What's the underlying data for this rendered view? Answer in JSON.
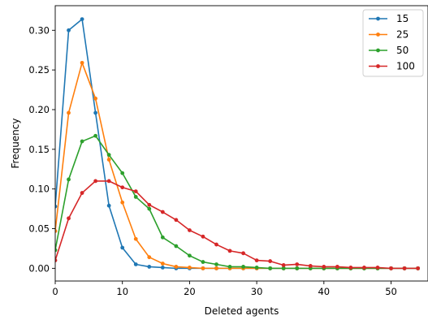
{
  "chart_data": {
    "type": "line",
    "title": "",
    "xlabel": "Deleted agents",
    "ylabel": "Frequency",
    "xlim": [
      0,
      55.5
    ],
    "ylim": [
      -0.016,
      0.331
    ],
    "xticks": [
      0,
      10,
      20,
      30,
      40,
      50
    ],
    "yticks": [
      0.0,
      0.05,
      0.1,
      0.15,
      0.2,
      0.25,
      0.3
    ],
    "ytick_labels": [
      "0.00",
      "0.05",
      "0.10",
      "0.15",
      "0.20",
      "0.25",
      "0.30"
    ],
    "grid": false,
    "legend_position": "top-right",
    "series": [
      {
        "name": "15",
        "color": "#1f77b4",
        "x": [
          0,
          2,
          4,
          6,
          8,
          10,
          12,
          14,
          16,
          18,
          20,
          22,
          24,
          26,
          28,
          30,
          32,
          34,
          36,
          38,
          40,
          42,
          44,
          46,
          48,
          50,
          52,
          54
        ],
        "y": [
          0.078,
          0.3,
          0.314,
          0.196,
          0.079,
          0.026,
          0.005,
          0.002,
          0.001,
          0.0,
          0.0,
          0.0,
          0.0,
          0.0,
          0.0,
          0.0,
          0.0,
          0.0,
          0.0,
          0.0,
          0.0,
          0.0,
          0.0,
          0.0,
          0.0,
          0.0,
          0.0,
          0.0
        ]
      },
      {
        "name": "25",
        "color": "#ff7f0e",
        "x": [
          0,
          2,
          4,
          6,
          8,
          10,
          12,
          14,
          16,
          18,
          20,
          22,
          24,
          26,
          28,
          30,
          32,
          34,
          36,
          38,
          40,
          42,
          44,
          46,
          48,
          50,
          52,
          54
        ],
        "y": [
          0.047,
          0.196,
          0.259,
          0.214,
          0.137,
          0.083,
          0.037,
          0.014,
          0.006,
          0.002,
          0.001,
          0.0,
          0.0,
          0.0,
          0.0,
          0.0,
          0.0,
          0.0,
          0.0,
          0.0,
          0.0,
          0.0,
          0.0,
          0.0,
          0.0,
          0.0,
          0.0,
          0.0
        ]
      },
      {
        "name": "50",
        "color": "#2ca02c",
        "x": [
          0,
          2,
          4,
          6,
          8,
          10,
          12,
          14,
          16,
          18,
          20,
          22,
          24,
          26,
          28,
          30,
          32,
          34,
          36,
          38,
          40,
          42,
          44,
          46,
          48,
          50,
          52,
          54
        ],
        "y": [
          0.023,
          0.112,
          0.16,
          0.167,
          0.143,
          0.12,
          0.09,
          0.075,
          0.039,
          0.028,
          0.016,
          0.008,
          0.005,
          0.002,
          0.002,
          0.001,
          0.0,
          0.0,
          0.0,
          0.0,
          0.0,
          0.0,
          0.0,
          0.0,
          0.0,
          0.0,
          0.0,
          0.0
        ]
      },
      {
        "name": "100",
        "color": "#d62728",
        "x": [
          0,
          2,
          4,
          6,
          8,
          10,
          12,
          14,
          16,
          18,
          20,
          22,
          24,
          26,
          28,
          30,
          32,
          34,
          36,
          38,
          40,
          42,
          44,
          46,
          48,
          50,
          52,
          54
        ],
        "y": [
          0.01,
          0.063,
          0.095,
          0.11,
          0.11,
          0.102,
          0.097,
          0.08,
          0.071,
          0.061,
          0.048,
          0.04,
          0.03,
          0.022,
          0.019,
          0.01,
          0.009,
          0.004,
          0.005,
          0.003,
          0.002,
          0.002,
          0.001,
          0.001,
          0.001,
          0.0,
          0.0,
          0.0
        ]
      }
    ]
  }
}
